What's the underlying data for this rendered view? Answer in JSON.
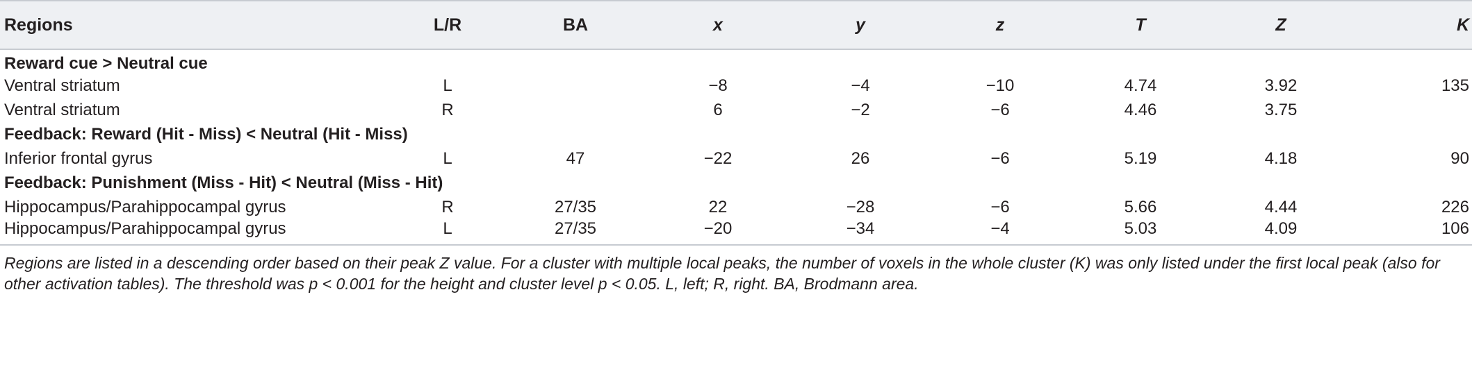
{
  "headers": {
    "region": "Regions",
    "lr": "L/R",
    "ba": "BA",
    "x": "x",
    "y": "y",
    "z": "z",
    "T": "T",
    "Z": "Z",
    "K": "K"
  },
  "sections": [
    {
      "title": "Reward cue > Neutral cue",
      "rows": [
        {
          "region": "Ventral striatum",
          "lr": "L",
          "ba": "",
          "x": "−8",
          "y": "−4",
          "z": "−10",
          "T": "4.74",
          "Z": "3.92",
          "K": "135"
        },
        {
          "region": "Ventral striatum",
          "lr": "R",
          "ba": "",
          "x": "6",
          "y": "−2",
          "z": "−6",
          "T": "4.46",
          "Z": "3.75",
          "K": ""
        }
      ]
    },
    {
      "title": "Feedback: Reward (Hit - Miss) < Neutral (Hit - Miss)",
      "rows": [
        {
          "region": "Inferior frontal gyrus",
          "lr": "L",
          "ba": "47",
          "x": "−22",
          "y": "26",
          "z": "−6",
          "T": "5.19",
          "Z": "4.18",
          "K": "90"
        }
      ]
    },
    {
      "title": "Feedback: Punishment (Miss - Hit) < Neutral (Miss - Hit)",
      "rows": [
        {
          "region": "Hippocampus/Parahippocampal gyrus",
          "lr": "R",
          "ba": "27/35",
          "x": "22",
          "y": "−28",
          "z": "−6",
          "T": "5.66",
          "Z": "4.44",
          "K": "226"
        },
        {
          "region": "Hippocampus/Parahippocampal gyrus",
          "lr": "L",
          "ba": "27/35",
          "x": "−20",
          "y": "−34",
          "z": "−4",
          "T": "5.03",
          "Z": "4.09",
          "K": "106"
        }
      ]
    }
  ],
  "footnote": "Regions are listed in a descending order based on their peak Z value. For a cluster with multiple local peaks, the number of voxels in the whole cluster (K) was only listed under the first local peak (also for other activation tables). The threshold was p < 0.001 for the height and cluster level p < 0.05. L, left; R, right. BA, Brodmann area."
}
